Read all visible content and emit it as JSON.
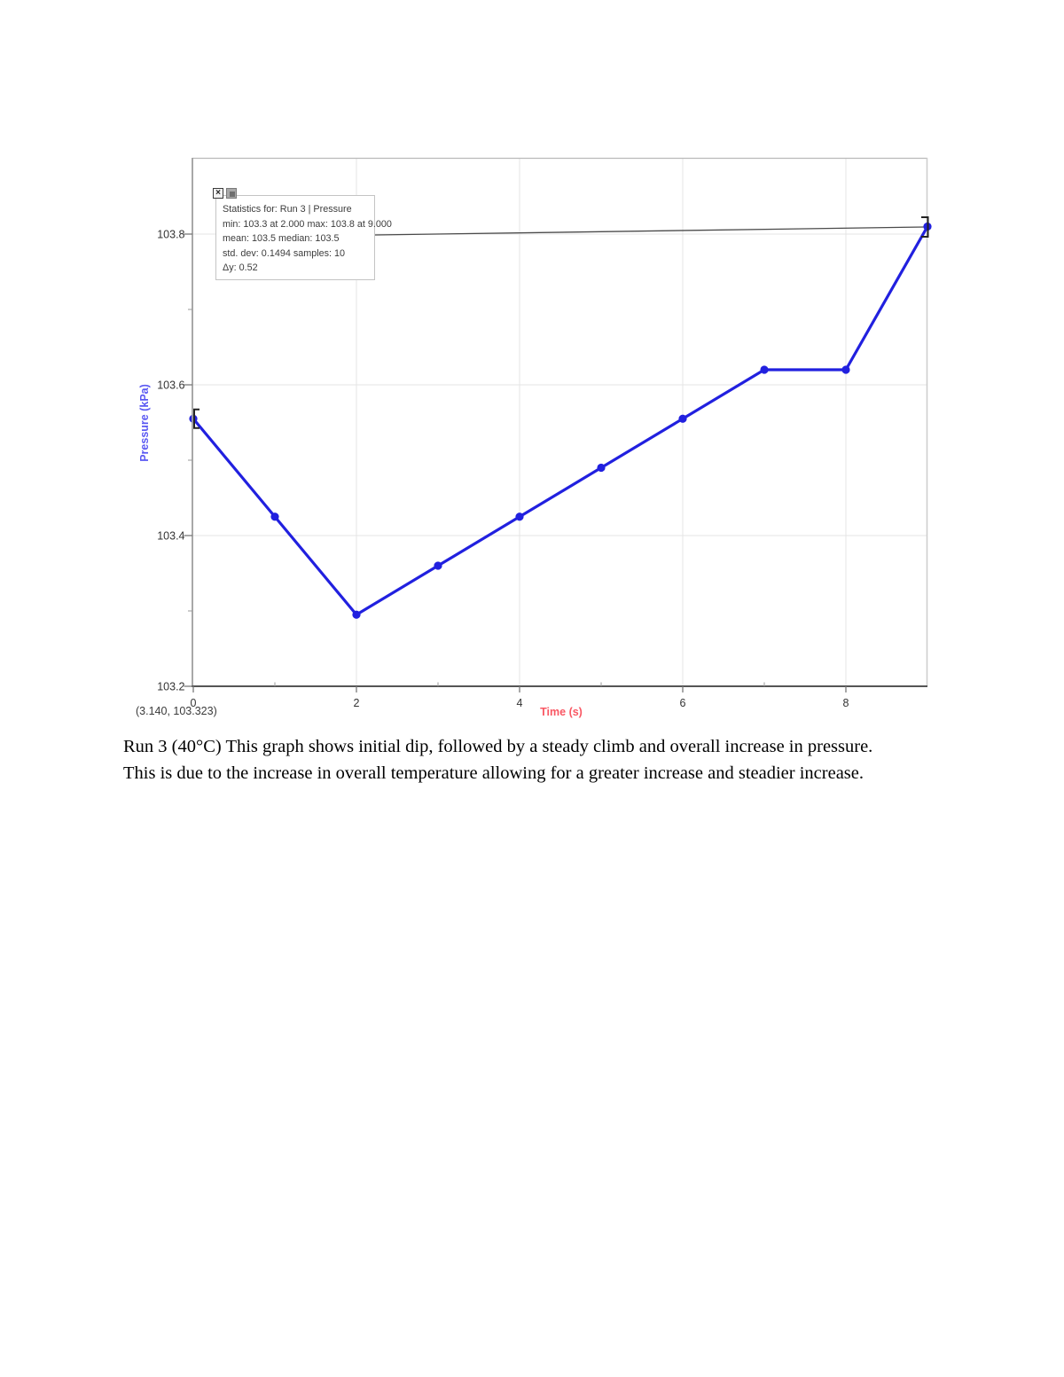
{
  "page": {
    "background": "#ffffff"
  },
  "chart": {
    "ylabel": "Pressure (kPa)",
    "xlabel": "Time (s)",
    "cursor_readout": "(3.140, 103.323)",
    "colors": {
      "line": "#2120df",
      "ylabel": "#5a58f2",
      "xlabel": "#f95763",
      "tick_label": "#333333",
      "gridline": "#e4e4e4",
      "axis": "#8f8f8f",
      "bottom_axis": "#555555",
      "bracket": "#222222",
      "stats_line": "#4a4a4a"
    },
    "stats_box": {
      "close_glyph": "×",
      "lines": [
        "Statistics for: Run 3 | Pressure",
        "min: 103.3 at 2.000 max: 103.8 at 9.000",
        "mean: 103.5 median: 103.5",
        "std. dev: 0.1494 samples: 10",
        "Δy: 0.52"
      ]
    }
  },
  "chart_data": {
    "type": "line",
    "title": "",
    "xlabel": "Time (s)",
    "ylabel": "Pressure (kPa)",
    "x": [
      0,
      1,
      2,
      3,
      4,
      5,
      6,
      7,
      8,
      9
    ],
    "series": [
      {
        "name": "Run 3 | Pressure",
        "values": [
          103.555,
          103.425,
          103.295,
          103.36,
          103.425,
          103.49,
          103.555,
          103.62,
          103.62,
          103.81
        ]
      }
    ],
    "xlim": [
      0,
      9
    ],
    "ylim": [
      103.2,
      103.9
    ],
    "x_major_ticks": [
      0,
      2,
      4,
      6,
      8
    ],
    "x_tick_labels": [
      "0",
      "2",
      "4",
      "6",
      "8"
    ],
    "x_minor_ticks": [
      1,
      3,
      5,
      7
    ],
    "y_major_ticks": [
      103.8,
      103.6,
      103.4,
      103.2
    ],
    "y_tick_labels": [
      "103.8",
      "103.6",
      "103.4",
      "103.2"
    ],
    "y_minor_ticks": [
      103.7,
      103.5,
      103.3
    ],
    "grid": true,
    "legend": "none",
    "selection": {
      "start_index": 0,
      "end_index": 9
    },
    "statistics": {
      "min": 103.3,
      "min_at": 2.0,
      "max": 103.8,
      "max_at": 9.0,
      "mean": 103.5,
      "median": 103.5,
      "std_dev": 0.1494,
      "samples": 10,
      "delta_y": 0.52
    }
  },
  "caption": {
    "lines": [
      "Run 3 (40°C) This graph shows initial dip, followed by a steady climb and overall increase in pressure.",
      "This is due to the increase in overall temperature allowing for a greater increase and steadier increase."
    ]
  }
}
